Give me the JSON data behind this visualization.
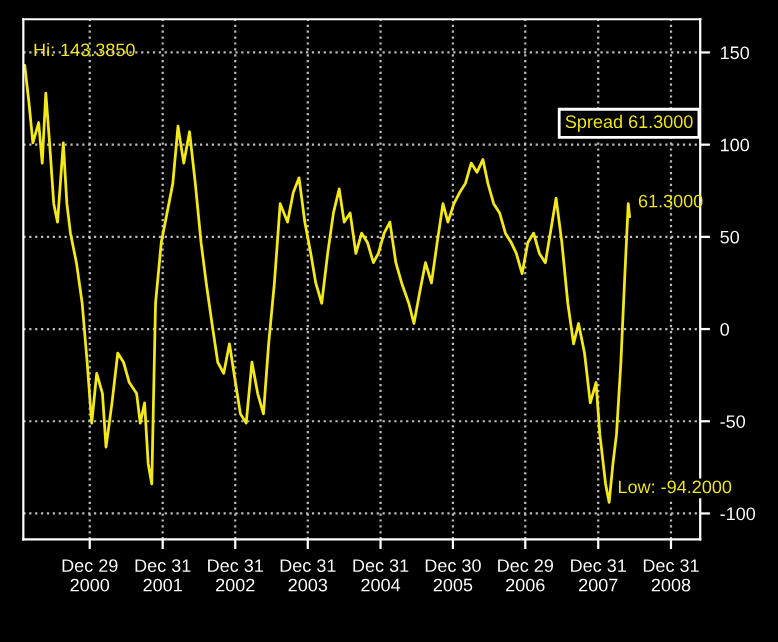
{
  "chart_data": {
    "type": "line",
    "x": [
      "2000-02-06",
      "2000-02-27",
      "2000-03-18",
      "2000-04-16",
      "2000-05-04",
      "2000-05-22",
      "2000-06-10",
      "2000-07-01",
      "2000-07-20",
      "2000-08-18",
      "2000-09-05",
      "2000-09-23",
      "2000-10-23",
      "2000-11-21",
      "2000-12-16",
      "2001-01-08",
      "2001-02-02",
      "2001-03-03",
      "2001-03-21",
      "2001-04-20",
      "2001-05-19",
      "2001-06-17",
      "2001-07-16",
      "2001-08-22",
      "2001-09-09",
      "2001-10-01",
      "2001-10-19",
      "2001-11-06",
      "2001-11-25",
      "2001-12-24",
      "2002-01-22",
      "2002-02-20",
      "2002-03-18",
      "2002-04-16",
      "2002-05-15",
      "2002-06-13",
      "2002-07-12",
      "2002-08-07",
      "2002-09-05",
      "2002-10-04",
      "2002-11-03",
      "2002-12-02",
      "2003-01-01",
      "2003-01-26",
      "2003-02-24",
      "2003-03-25",
      "2003-04-23",
      "2003-05-22",
      "2003-06-17",
      "2003-07-16",
      "2003-08-14",
      "2003-09-20",
      "2003-10-19",
      "2003-11-17",
      "2003-12-16",
      "2004-01-15",
      "2004-02-09",
      "2004-03-10",
      "2004-04-09",
      "2004-05-08",
      "2004-06-06",
      "2004-07-01",
      "2004-07-31",
      "2004-08-29",
      "2004-09-27",
      "2004-10-26",
      "2004-11-25",
      "2004-12-20",
      "2005-01-18",
      "2005-02-16",
      "2005-03-18",
      "2005-04-16",
      "2005-05-22",
      "2005-06-17",
      "2005-07-16",
      "2005-08-14",
      "2005-09-13",
      "2005-10-12",
      "2005-11-10",
      "2005-12-05",
      "2006-01-04",
      "2006-02-02",
      "2006-03-03",
      "2006-04-01",
      "2006-04-30",
      "2006-05-30",
      "2006-06-24",
      "2006-07-23",
      "2006-08-22",
      "2006-09-20",
      "2006-10-19",
      "2006-11-14",
      "2006-12-13",
      "2007-01-11",
      "2007-02-09",
      "2007-03-10",
      "2007-04-09",
      "2007-05-04",
      "2007-06-02",
      "2007-07-01",
      "2007-07-31",
      "2007-08-29",
      "2007-09-23",
      "2007-10-23",
      "2007-11-21",
      "2007-12-20",
      "2008-01-08",
      "2008-02-06",
      "2008-02-24",
      "2008-03-14",
      "2008-04-01",
      "2008-04-23",
      "2008-05-11",
      "2008-05-30",
      "2008-06-06"
    ],
    "series": [
      {
        "color": "#f2e81a",
        "values": [
          143,
          123,
          101,
          112,
          90,
          128,
          101,
          68,
          58,
          101,
          68,
          52,
          36,
          14,
          -18,
          -51,
          -24,
          -35,
          -64,
          -40,
          -13,
          -18,
          -29,
          -35,
          -51,
          -40,
          -73,
          -84,
          14,
          47,
          63,
          79,
          110,
          90,
          107,
          79,
          47,
          25,
          3,
          -18,
          -24,
          -8,
          -29,
          -46,
          -51,
          -18,
          -35,
          -46,
          -8,
          25,
          68,
          58,
          74,
          82,
          58,
          41,
          25,
          14,
          41,
          63,
          76,
          58,
          63,
          41,
          52,
          47,
          36,
          41,
          52,
          58,
          36,
          25,
          14,
          3,
          20,
          36,
          25,
          47,
          68,
          58,
          68,
          74,
          79,
          90,
          85,
          92,
          79,
          68,
          63,
          52,
          47,
          41,
          30,
          47,
          52,
          41,
          36,
          52,
          71,
          47,
          14,
          -8,
          3,
          -13,
          -40,
          -29,
          -57,
          -84,
          -94,
          -73,
          -57,
          -18,
          25,
          68,
          61
        ]
      }
    ],
    "xlim": [
      "2000-01-30",
      "2009-05-27"
    ],
    "xticks": [
      {
        "value": "2000-12-29",
        "label": "Dec 29\n2000"
      },
      {
        "value": "2001-12-31",
        "label": "Dec 31\n2001"
      },
      {
        "value": "2002-12-31",
        "label": "Dec 31\n2002"
      },
      {
        "value": "2003-12-31",
        "label": "Dec 31\n2003"
      },
      {
        "value": "2004-12-31",
        "label": "Dec 31\n2004"
      },
      {
        "value": "2005-12-30",
        "label": "Dec 30\n2005"
      },
      {
        "value": "2006-12-29",
        "label": "Dec 29\n2006"
      },
      {
        "value": "2007-12-31",
        "label": "Dec 31\n2007"
      },
      {
        "value": "2008-12-31",
        "label": "Dec 31\n2008"
      }
    ],
    "ylim": [
      -114,
      168
    ],
    "yticks": [
      -100,
      -50,
      0,
      50,
      100,
      150
    ],
    "grid": true,
    "line_style": "solid",
    "annotations": [
      {
        "text": "Hi: 143.3850",
        "x": "2000-02-06",
        "y": 143
      },
      {
        "text": "Low: -94.2000",
        "x": "2008-02-24",
        "y": -94
      },
      {
        "text": "61.3000",
        "x": "2008-06-06",
        "y": 61
      },
      "Spread 61.3000"
    ]
  }
}
